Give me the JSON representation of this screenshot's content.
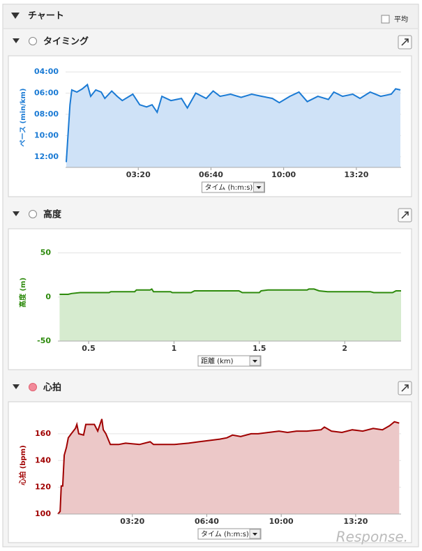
{
  "header": {
    "title": "チャート",
    "average_label": "平均"
  },
  "watermark": "Response.",
  "chart_data": [
    {
      "type": "area",
      "title": "タイミング",
      "ylabel": "ペース (min/km)",
      "xlabel": "タイム (h:m:s)",
      "color": "#1a7ad4",
      "fill": "#cfe2f7",
      "grid": true,
      "xlim": [
        0,
        923
      ],
      "ylim": [
        13,
        3.6
      ],
      "xticks": [
        {
          "value": 200,
          "label": "03:20"
        },
        {
          "value": 400,
          "label": "06:40"
        },
        {
          "value": 600,
          "label": "10:00"
        },
        {
          "value": 800,
          "label": "13:20"
        }
      ],
      "yticks": [
        {
          "value": 4,
          "label": "04:00"
        },
        {
          "value": 6,
          "label": "06:00"
        },
        {
          "value": 8,
          "label": "08:00"
        },
        {
          "value": 10,
          "label": "10:00"
        },
        {
          "value": 12,
          "label": "12:00"
        }
      ],
      "x": [
        2,
        12,
        17,
        31,
        46,
        60,
        69,
        83,
        98,
        108,
        127,
        142,
        156,
        185,
        204,
        223,
        238,
        252,
        265,
        290,
        319,
        335,
        358,
        387,
        406,
        425,
        454,
        483,
        512,
        540,
        569,
        588,
        617,
        642,
        665,
        694,
        723,
        738,
        762,
        790,
        810,
        838,
        867,
        896,
        908,
        921
      ],
      "values": [
        12.5,
        7.1,
        5.7,
        5.9,
        5.6,
        5.2,
        6.3,
        5.7,
        5.9,
        6.5,
        5.8,
        6.3,
        6.7,
        6.1,
        7.1,
        7.3,
        7.1,
        7.8,
        6.3,
        6.7,
        6.5,
        7.4,
        6.0,
        6.5,
        5.8,
        6.3,
        6.1,
        6.4,
        6.1,
        6.3,
        6.5,
        6.9,
        6.3,
        5.9,
        6.8,
        6.3,
        6.6,
        5.9,
        6.3,
        6.1,
        6.5,
        5.9,
        6.3,
        6.1,
        5.6,
        5.7
      ]
    },
    {
      "type": "area",
      "title": "高度",
      "ylabel": "高度 (m)",
      "xlabel": "距離 (km)",
      "color": "#2d8a0c",
      "fill": "#d6ebcf",
      "grid": true,
      "xlim": [
        0.32,
        2.33
      ],
      "ylim": [
        -50,
        60
      ],
      "xticks": [
        0.5,
        1,
        1.5,
        2
      ],
      "yticks": [
        -50,
        0,
        50
      ],
      "x": [
        0.33,
        0.38,
        0.4,
        0.45,
        0.62,
        0.63,
        0.77,
        0.78,
        0.86,
        0.87,
        0.88,
        0.98,
        0.99,
        1.1,
        1.12,
        1.38,
        1.4,
        1.5,
        1.51,
        1.55,
        1.78,
        1.79,
        1.82,
        1.85,
        1.9,
        2.15,
        2.17,
        2.28,
        2.3,
        2.33
      ],
      "values": [
        3,
        3,
        4,
        5,
        5,
        6,
        6,
        8,
        8,
        9,
        6,
        6,
        5,
        5,
        7,
        7,
        5,
        5,
        7,
        8,
        8,
        9,
        9,
        7,
        6,
        6,
        5,
        5,
        7,
        7
      ]
    },
    {
      "type": "area",
      "title": "心拍",
      "ylabel": "心拍 (bpm)",
      "xlabel": "タイム (h:m:s)",
      "color": "#a00000",
      "fill": "#ecc8c8",
      "grid": true,
      "xlim": [
        0,
        922
      ],
      "ylim": [
        100,
        173
      ],
      "xticks": [
        {
          "value": 200,
          "label": "03:20"
        },
        {
          "value": 400,
          "label": "06:40"
        },
        {
          "value": 600,
          "label": "10:00"
        },
        {
          "value": 800,
          "label": "13:20"
        }
      ],
      "yticks": [
        100,
        120,
        140,
        160
      ],
      "x": [
        0,
        6,
        9,
        13,
        17,
        23,
        28,
        36,
        47,
        51,
        56,
        69,
        75,
        98,
        107,
        118,
        122,
        129,
        141,
        163,
        182,
        219,
        248,
        257,
        313,
        351,
        379,
        407,
        435,
        454,
        469,
        491,
        519,
        538,
        566,
        594,
        617,
        641,
        669,
        707,
        716,
        735,
        763,
        791,
        819,
        847,
        872,
        891,
        904,
        917
      ],
      "values": [
        100,
        102,
        121,
        121,
        144,
        150,
        157,
        160,
        164,
        167,
        160,
        159,
        167,
        167,
        162,
        171,
        163,
        160,
        152,
        152,
        153,
        152,
        154,
        152,
        152,
        153,
        154,
        155,
        156,
        157,
        159,
        158,
        160,
        160,
        161,
        162,
        161,
        162,
        162,
        163,
        165,
        162,
        161,
        163,
        162,
        164,
        163,
        166,
        169,
        168
      ]
    }
  ]
}
